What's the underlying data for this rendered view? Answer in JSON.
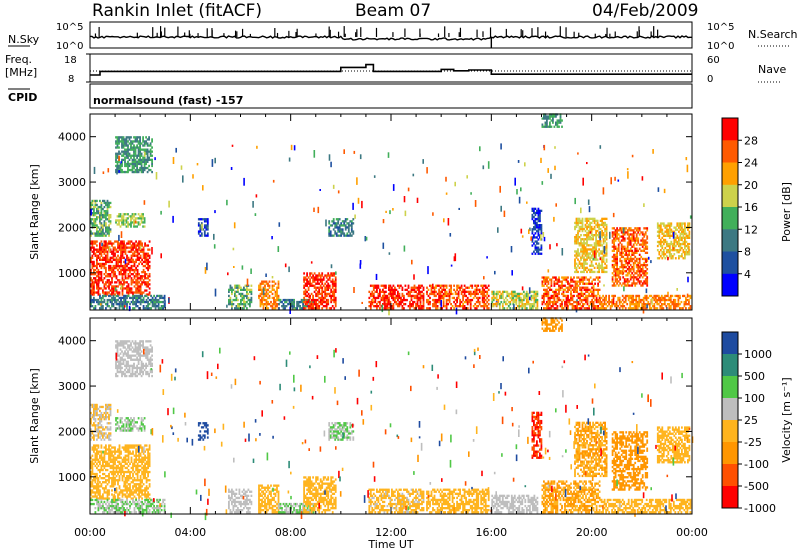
{
  "header": {
    "station": "Rankin Inlet (fitACF)",
    "beam": "Beam 07",
    "date": "04/Feb/2009"
  },
  "status_panel": {
    "nsky_label": "N.Sky",
    "nsky_ticks": [
      "10^5",
      "10^0"
    ],
    "nsearch_label": "N.Search",
    "nsearch_ticks": [
      "10^5",
      "10^0"
    ],
    "freq_label": "Freq.",
    "freq_unit": "[MHz]",
    "freq_ticks": [
      "18",
      "8"
    ],
    "nave_label": "Nave",
    "nave_ticks": [
      "60",
      "0"
    ],
    "cpid_label": "CPID",
    "cpid_value": "normalsound (fast) -157"
  },
  "colors": {
    "power_scale": [
      "#0000ff",
      "#1e50a0",
      "#3c7882",
      "#41af5a",
      "#cdd24b",
      "#ffa000",
      "#ff5a00",
      "#ff0000"
    ],
    "velocity_scale": [
      "#ff0000",
      "#ff5000",
      "#ff9600",
      "#ffb41e",
      "#bebebe",
      "#50c846",
      "#2d8c78",
      "#1e4ba0"
    ]
  },
  "chart_data": [
    {
      "type": "heatmap",
      "name": "power",
      "ylabel": "Slant Range [km]",
      "xlabel": "",
      "x_range_hours_ut": [
        0,
        24
      ],
      "ylim": [
        180,
        4500
      ],
      "y_ticks": [
        "1000",
        "2000",
        "3000",
        "4000"
      ],
      "x_ticks": [
        "00:00",
        "04:00",
        "08:00",
        "12:00",
        "16:00",
        "20:00",
        "00:00"
      ],
      "colorbar_label": "Power [dB]",
      "colorbar_ticks": [
        "4",
        "8",
        "12",
        "16",
        "20",
        "24",
        "28"
      ],
      "colorbar_range": [
        0,
        32
      ],
      "echo_regions": [
        {
          "t": [
            0.0,
            2.4
          ],
          "r": [
            500,
            1700
          ],
          "value": 28
        },
        {
          "t": [
            0.0,
            0.8
          ],
          "r": [
            1800,
            2600
          ],
          "value": 14
        },
        {
          "t": [
            1.0,
            2.2
          ],
          "r": [
            2000,
            2300
          ],
          "value": 16
        },
        {
          "t": [
            1.0,
            2.5
          ],
          "r": [
            3200,
            4000
          ],
          "value": 12
        },
        {
          "t": [
            0.0,
            3.0
          ],
          "r": [
            200,
            500
          ],
          "value": 10
        },
        {
          "t": [
            4.3,
            4.7
          ],
          "r": [
            1800,
            2200
          ],
          "value": 6
        },
        {
          "t": [
            5.5,
            6.4
          ],
          "r": [
            200,
            700
          ],
          "value": 14
        },
        {
          "t": [
            6.7,
            7.5
          ],
          "r": [
            200,
            800
          ],
          "value": 24
        },
        {
          "t": [
            7.5,
            8.9
          ],
          "r": [
            200,
            400
          ],
          "value": 10
        },
        {
          "t": [
            8.5,
            9.8
          ],
          "r": [
            200,
            1000
          ],
          "value": 28
        },
        {
          "t": [
            9.5,
            10.5
          ],
          "r": [
            1800,
            2200
          ],
          "value": 10
        },
        {
          "t": [
            11.1,
            13.3
          ],
          "r": [
            200,
            700
          ],
          "value": 29
        },
        {
          "t": [
            13.4,
            15.9
          ],
          "r": [
            200,
            700
          ],
          "value": 27
        },
        {
          "t": [
            16.0,
            17.8
          ],
          "r": [
            200,
            600
          ],
          "value": 18
        },
        {
          "t": [
            18.0,
            20.3
          ],
          "r": [
            200,
            900
          ],
          "value": 26
        },
        {
          "t": [
            20.3,
            23.9
          ],
          "r": [
            200,
            500
          ],
          "value": 24
        },
        {
          "t": [
            17.6,
            18.0
          ],
          "r": [
            1400,
            2400
          ],
          "value": 4
        },
        {
          "t": [
            19.3,
            20.6
          ],
          "r": [
            1000,
            2200
          ],
          "value": 20
        },
        {
          "t": [
            20.8,
            22.2
          ],
          "r": [
            700,
            2000
          ],
          "value": 26
        },
        {
          "t": [
            22.6,
            23.9
          ],
          "r": [
            1300,
            2100
          ],
          "value": 20
        },
        {
          "t": [
            18.0,
            18.8
          ],
          "r": [
            4200,
            4500
          ],
          "value": 12
        }
      ]
    },
    {
      "type": "heatmap",
      "name": "velocity",
      "ylabel": "Slant Range [km]",
      "xlabel": "Time UT",
      "x_range_hours_ut": [
        0,
        24
      ],
      "ylim": [
        180,
        4500
      ],
      "y_ticks": [
        "1000",
        "2000",
        "3000",
        "4000"
      ],
      "x_ticks": [
        "00:00",
        "04:00",
        "08:00",
        "12:00",
        "16:00",
        "20:00",
        "00:00"
      ],
      "colorbar_label": "Velocity [m s⁻¹]",
      "colorbar_ticks": [
        "1000",
        "500",
        "100",
        "25",
        "-25",
        "-100",
        "-500",
        "-1000"
      ],
      "colorbar_range": [
        -1200,
        1200
      ],
      "echo_regions": [
        {
          "t": [
            0.0,
            2.4
          ],
          "r": [
            500,
            1700
          ],
          "value": -150
        },
        {
          "t": [
            0.0,
            0.8
          ],
          "r": [
            1800,
            2600
          ],
          "value": 0
        },
        {
          "t": [
            1.0,
            2.2
          ],
          "r": [
            2000,
            2300
          ],
          "value": 300
        },
        {
          "t": [
            1.0,
            2.5
          ],
          "r": [
            3200,
            4000
          ],
          "value": 200
        },
        {
          "t": [
            0.0,
            3.0
          ],
          "r": [
            200,
            500
          ],
          "value": 300
        },
        {
          "t": [
            4.3,
            4.7
          ],
          "r": [
            1800,
            2200
          ],
          "value": 1000
        },
        {
          "t": [
            5.5,
            6.4
          ],
          "r": [
            200,
            700
          ],
          "value": 200
        },
        {
          "t": [
            6.7,
            7.5
          ],
          "r": [
            200,
            800
          ],
          "value": -100
        },
        {
          "t": [
            7.5,
            8.9
          ],
          "r": [
            200,
            400
          ],
          "value": 300
        },
        {
          "t": [
            8.5,
            9.8
          ],
          "r": [
            200,
            1000
          ],
          "value": -80
        },
        {
          "t": [
            9.5,
            10.5
          ],
          "r": [
            1800,
            2200
          ],
          "value": 300
        },
        {
          "t": [
            11.1,
            13.3
          ],
          "r": [
            200,
            700
          ],
          "value": -60
        },
        {
          "t": [
            13.4,
            15.9
          ],
          "r": [
            200,
            700
          ],
          "value": -200
        },
        {
          "t": [
            16.0,
            17.8
          ],
          "r": [
            200,
            600
          ],
          "value": 150
        },
        {
          "t": [
            18.0,
            20.3
          ],
          "r": [
            200,
            900
          ],
          "value": -300
        },
        {
          "t": [
            20.3,
            23.9
          ],
          "r": [
            200,
            500
          ],
          "value": -200
        },
        {
          "t": [
            17.6,
            18.0
          ],
          "r": [
            1400,
            2400
          ],
          "value": -900
        },
        {
          "t": [
            19.3,
            20.6
          ],
          "r": [
            1000,
            2200
          ],
          "value": -300
        },
        {
          "t": [
            20.8,
            22.2
          ],
          "r": [
            700,
            2000
          ],
          "value": -400
        },
        {
          "t": [
            22.6,
            23.9
          ],
          "r": [
            1300,
            2100
          ],
          "value": -150
        },
        {
          "t": [
            18.0,
            18.8
          ],
          "r": [
            4200,
            4500
          ],
          "value": -400
        }
      ]
    },
    {
      "type": "line",
      "name": "frequency",
      "ylim": [
        8,
        18
      ],
      "x_range_hours_ut": [
        0,
        24
      ],
      "x": [
        0,
        0.4,
        0.4,
        10.0,
        10.0,
        11.0,
        11.0,
        11.3,
        11.3,
        14.0,
        14.0,
        14.5,
        14.5,
        15.1,
        15.1,
        16.0,
        16.0,
        24
      ],
      "values": [
        10.5,
        10.5,
        11.8,
        11.8,
        13.2,
        13.2,
        14.2,
        14.2,
        11.8,
        11.8,
        12.5,
        12.5,
        12.0,
        12.0,
        12.3,
        12.3,
        10.8,
        10.8
      ]
    }
  ]
}
